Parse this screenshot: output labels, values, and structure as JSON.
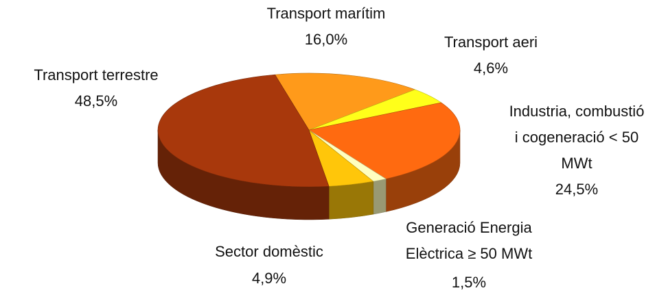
{
  "chart_data": {
    "type": "pie3d",
    "categories": [
      "Transport marítim",
      "Transport aeri",
      "Industria, combustió\ni cogeneració < 50\nMWt",
      "Generació Energia\nElèctrica ≥ 50 MWt",
      "Sector domèstic",
      "Transport terrestre"
    ],
    "values": [
      16.0,
      4.6,
      24.5,
      1.5,
      4.9,
      48.5
    ],
    "value_labels": [
      "16,0%",
      "4,6%",
      "24,5%",
      "1,5%",
      "4,9%",
      "48,5%"
    ],
    "colors": [
      "#ff9a1a",
      "#ffff1a",
      "#ff6a10",
      "#ffffc0",
      "#ffc60a",
      "#a8380c"
    ]
  }
}
